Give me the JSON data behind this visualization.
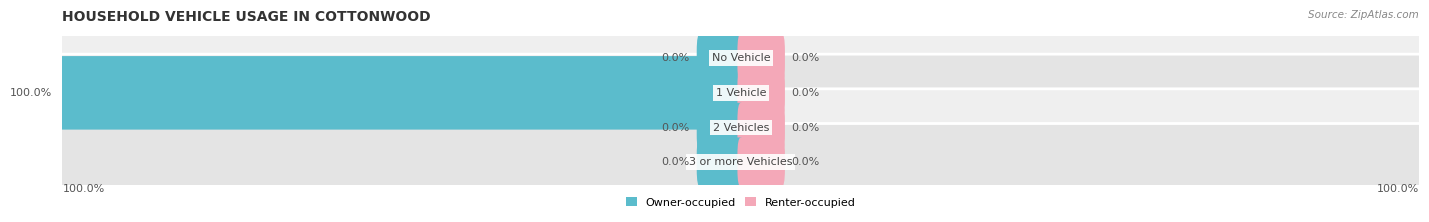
{
  "title": "HOUSEHOLD VEHICLE USAGE IN COTTONWOOD",
  "source": "Source: ZipAtlas.com",
  "categories": [
    "No Vehicle",
    "1 Vehicle",
    "2 Vehicles",
    "3 or more Vehicles"
  ],
  "owner_values": [
    0.0,
    100.0,
    0.0,
    0.0
  ],
  "renter_values": [
    0.0,
    0.0,
    0.0,
    0.0
  ],
  "owner_color": "#5bbccc",
  "renter_color": "#f4a8b8",
  "row_bg_colors": [
    "#efefef",
    "#e4e4e4",
    "#efefef",
    "#e4e4e4"
  ],
  "max_value": 100.0,
  "legend_owner": "Owner-occupied",
  "legend_renter": "Renter-occupied",
  "left_label": "100.0%",
  "right_label": "100.0%",
  "title_fontsize": 10,
  "label_fontsize": 8,
  "category_fontsize": 8,
  "source_fontsize": 7.5
}
